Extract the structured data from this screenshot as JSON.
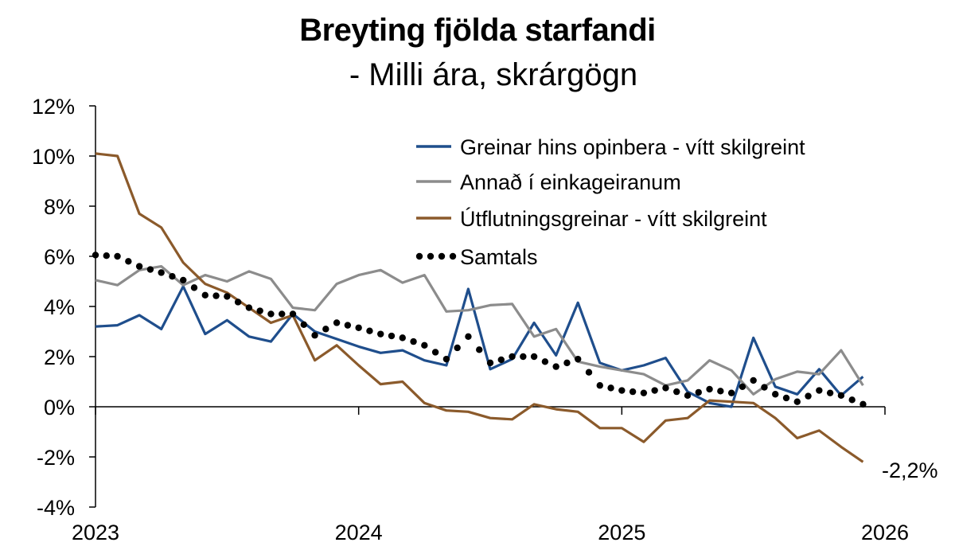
{
  "chart_data": {
    "type": "line",
    "title": "Breyting fjölda starfandi",
    "subtitle": "- Milli ára, skrárgögn",
    "xlabel": "",
    "ylabel": "",
    "ylim": [
      -4,
      12
    ],
    "y_ticks": [
      "-4%",
      "-2%",
      "0%",
      "2%",
      "4%",
      "6%",
      "8%",
      "10%",
      "12%"
    ],
    "x_ticks": [
      "2023",
      "2024",
      "2025",
      "2026"
    ],
    "x_start": "2023-01",
    "grid": false,
    "legend_position": "top-right",
    "end_label": "-2,2%",
    "series": [
      {
        "name": "Greinar hins opinbera - vítt skilgreint",
        "color": "#1f4e8c",
        "style": "solid",
        "values": [
          3.2,
          3.25,
          3.65,
          3.1,
          4.8,
          2.9,
          3.45,
          2.8,
          2.6,
          3.7,
          3.0,
          2.7,
          2.4,
          2.15,
          2.25,
          1.85,
          1.65,
          4.7,
          1.5,
          1.9,
          3.35,
          2.05,
          4.15,
          1.75,
          1.45,
          1.65,
          1.95,
          0.6,
          0.15,
          0.0,
          2.75,
          0.8,
          0.5,
          1.5,
          0.45,
          1.2
        ]
      },
      {
        "name": "Annað í einkageiranum",
        "color": "#8c8c8c",
        "style": "solid",
        "values": [
          5.05,
          4.85,
          5.45,
          5.6,
          4.85,
          5.25,
          5.0,
          5.4,
          5.1,
          3.95,
          3.85,
          4.9,
          5.25,
          5.45,
          4.95,
          5.25,
          3.8,
          3.85,
          4.05,
          4.1,
          2.8,
          3.1,
          1.8,
          1.6,
          1.45,
          1.3,
          0.85,
          1.05,
          1.85,
          1.45,
          0.5,
          1.1,
          1.4,
          1.3,
          2.25,
          0.85
        ]
      },
      {
        "name": "Útflutningsgreinar - vítt skilgreint",
        "color": "#8b5a2b",
        "style": "solid",
        "values": [
          10.1,
          10.0,
          7.7,
          7.15,
          5.75,
          4.9,
          4.55,
          3.95,
          3.35,
          3.65,
          1.85,
          2.45,
          1.65,
          0.9,
          1.0,
          0.15,
          -0.15,
          -0.2,
          -0.45,
          -0.5,
          0.1,
          -0.1,
          -0.2,
          -0.85,
          -0.85,
          -1.4,
          -0.55,
          -0.45,
          0.25,
          0.2,
          0.15,
          -0.45,
          -1.25,
          -0.95,
          -1.6,
          -2.2
        ]
      },
      {
        "name": "Samtals",
        "color": "#000000",
        "style": "dotted",
        "values": [
          6.05,
          6.0,
          5.6,
          5.35,
          5.05,
          4.45,
          4.4,
          3.95,
          3.7,
          3.7,
          2.85,
          3.35,
          3.15,
          2.9,
          2.75,
          2.45,
          1.9,
          2.8,
          1.75,
          2.0,
          2.0,
          1.6,
          1.9,
          0.85,
          0.65,
          0.55,
          0.75,
          0.45,
          0.7,
          0.55,
          1.05,
          0.5,
          0.2,
          0.65,
          0.45,
          0.1
        ]
      }
    ]
  }
}
